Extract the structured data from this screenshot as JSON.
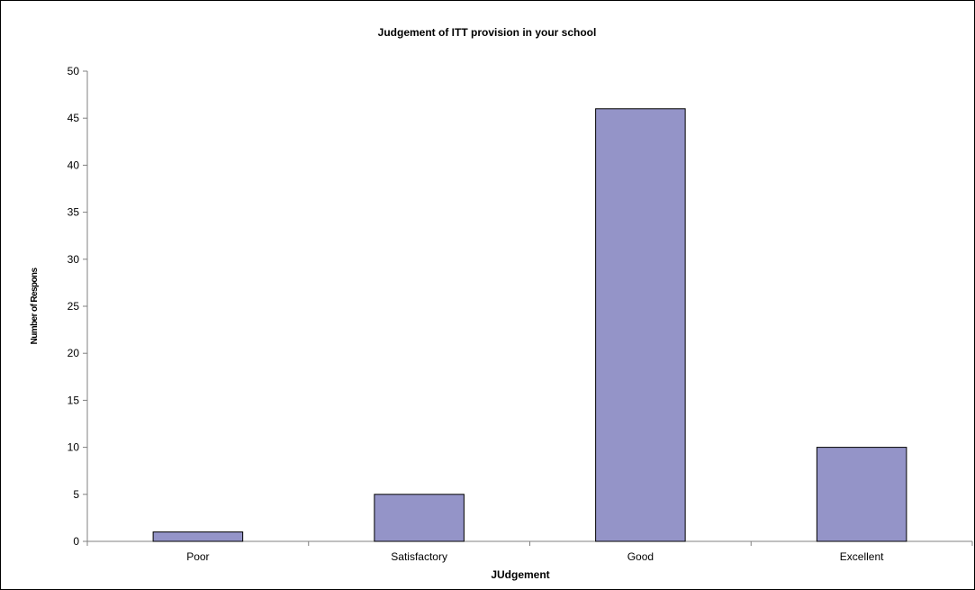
{
  "chart_data": {
    "type": "bar",
    "title": "Judgement of ITT provision in your school",
    "xlabel": "JUdgement",
    "ylabel": "Number of Respons",
    "categories": [
      "Poor",
      "Satisfactory",
      "Good",
      "Excellent"
    ],
    "values": [
      1,
      5,
      46,
      10
    ],
    "ylim": [
      0,
      50
    ],
    "yticks": [
      "0",
      "5",
      "10",
      "15",
      "20",
      "25",
      "30",
      "35",
      "40",
      "45",
      "50"
    ],
    "grid": false,
    "legend": "none",
    "colors": {
      "bar_fill": "#9494c8",
      "bar_stroke": "#000000",
      "axis": "#808080",
      "text": "#000000"
    }
  }
}
